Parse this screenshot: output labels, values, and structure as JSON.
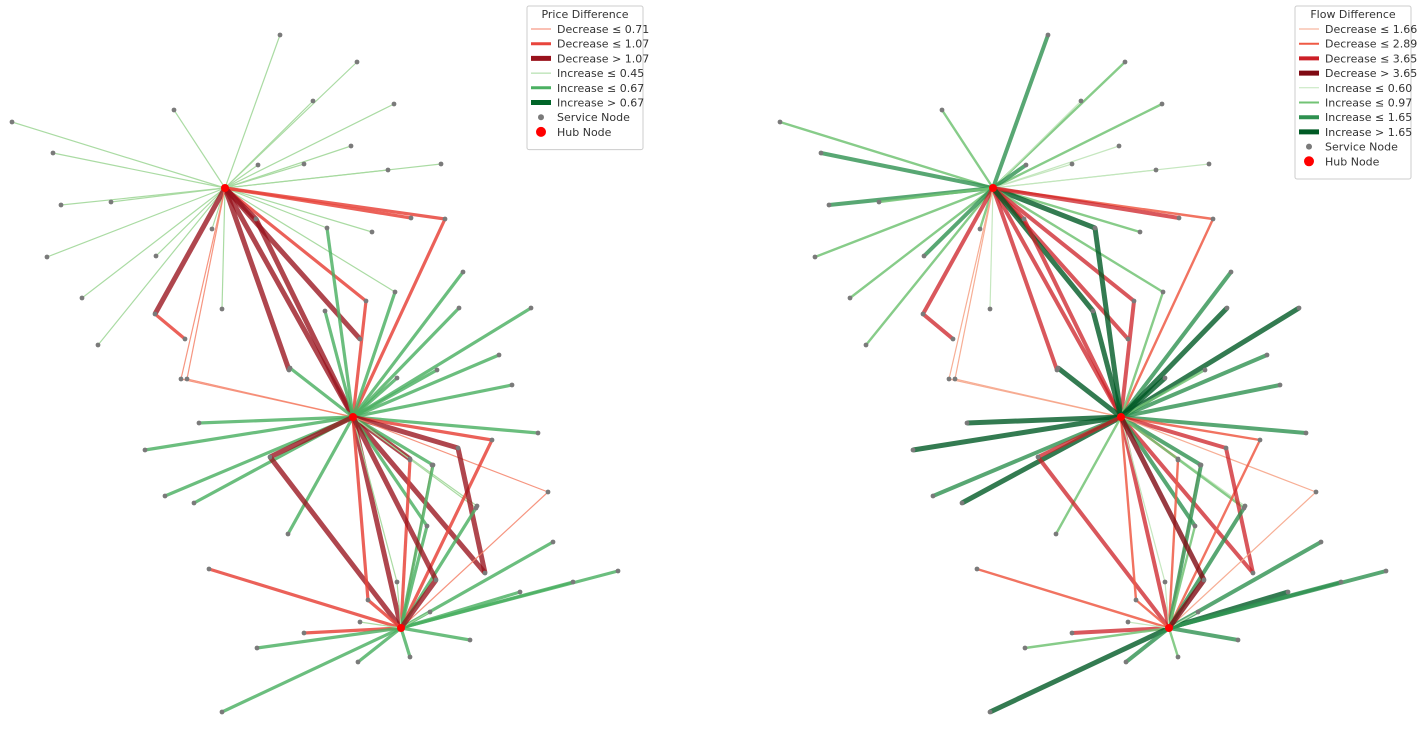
{
  "panels": [
    {
      "id": "price",
      "legend": {
        "title": "Price Difference",
        "items": [
          {
            "label": "Decrease ≤ 0.71",
            "kind": "line",
            "color": "#f4826a",
            "width": 1
          },
          {
            "label": "Decrease ≤ 1.07",
            "kind": "line",
            "color": "#e8453c",
            "width": 3
          },
          {
            "label": "Decrease > 1.07",
            "kind": "line",
            "color": "#99121c",
            "width": 5
          },
          {
            "label": "Increase ≤ 0.45",
            "kind": "line",
            "color": "#a5d99e",
            "width": 1
          },
          {
            "label": "Increase ≤ 0.67",
            "kind": "line",
            "color": "#4bb062",
            "width": 3
          },
          {
            "label": "Increase > 0.67",
            "kind": "line",
            "color": "#006428",
            "width": 5
          },
          {
            "label": "Service Node",
            "kind": "dot",
            "color": "#7a7a7a",
            "r": 3
          },
          {
            "label": "Hub Node",
            "kind": "dot",
            "color": "#ff0000",
            "r": 5
          }
        ]
      },
      "hubs": [
        "A",
        "B",
        "C"
      ],
      "edges": [
        [
          "A",
          "a1",
          "ip1"
        ],
        [
          "A",
          "a2",
          "ip1"
        ],
        [
          "A",
          "a3",
          "ip1"
        ],
        [
          "A",
          "a4",
          "ip1"
        ],
        [
          "A",
          "a5",
          "ip1"
        ],
        [
          "A",
          "a6",
          "ip1"
        ],
        [
          "A",
          "a7",
          "ip1"
        ],
        [
          "A",
          "a8",
          "ip1"
        ],
        [
          "A",
          "a9",
          "ip1"
        ],
        [
          "A",
          "a10",
          "ip1"
        ],
        [
          "A",
          "a11",
          "ip1"
        ],
        [
          "A",
          "a12",
          "ip1"
        ],
        [
          "A",
          "a13",
          "ip1"
        ],
        [
          "A",
          "a14",
          "ip1"
        ],
        [
          "A",
          "a15",
          "ip1"
        ],
        [
          "A",
          "a16",
          "ip1"
        ],
        [
          "A",
          "a17",
          "ip1"
        ],
        [
          "A",
          "a18",
          "ip1"
        ],
        [
          "A",
          "a19",
          "ip1"
        ],
        [
          "A",
          "a20",
          "ip1"
        ],
        [
          "A",
          "m1",
          "ip1"
        ],
        [
          "A",
          "m2",
          "ip1"
        ],
        [
          "A",
          "m6",
          "ip1"
        ],
        [
          "A",
          "m3",
          "dp3"
        ],
        [
          "A",
          "m5",
          "dp2"
        ],
        [
          "A",
          "m4",
          "dp2"
        ],
        [
          "A",
          "m7",
          "dp2"
        ],
        [
          "A",
          "m8",
          "dp3"
        ],
        [
          "A",
          "m9",
          "dp3"
        ],
        [
          "A",
          "m13",
          "dp1"
        ],
        [
          "A",
          "m14",
          "dp1"
        ],
        [
          "A",
          "B",
          "dp3"
        ],
        [
          "A",
          "m10",
          "dp3"
        ],
        [
          "m3",
          "m12",
          "dp2"
        ],
        [
          "m5",
          "B",
          "dp2"
        ],
        [
          "m7",
          "B",
          "dp2"
        ],
        [
          "m14",
          "B",
          "dp1"
        ],
        [
          "m13",
          "B",
          "dp1"
        ],
        [
          "m10",
          "B",
          "dp3"
        ],
        [
          "m2",
          "B",
          "ip2"
        ],
        [
          "m6",
          "B",
          "ip2"
        ],
        [
          "B",
          "b1",
          "ip2"
        ],
        [
          "B",
          "b2",
          "ip2"
        ],
        [
          "B",
          "b3",
          "ip2"
        ],
        [
          "B",
          "b4",
          "ip2"
        ],
        [
          "B",
          "b5",
          "ip2"
        ],
        [
          "B",
          "b6",
          "ip2"
        ],
        [
          "B",
          "b7",
          "ip2"
        ],
        [
          "B",
          "b8",
          "ip2"
        ],
        [
          "B",
          "b9",
          "ip2"
        ],
        [
          "B",
          "b10",
          "ip2"
        ],
        [
          "B",
          "b11",
          "ip2"
        ],
        [
          "B",
          "b12",
          "ip2"
        ],
        [
          "B",
          "b13",
          "ip2"
        ],
        [
          "B",
          "b14",
          "ip2"
        ],
        [
          "B",
          "b15",
          "ip1"
        ],
        [
          "B",
          "m11",
          "ip2"
        ],
        [
          "B",
          "b16",
          "dp2"
        ],
        [
          "B",
          "b17",
          "dp3"
        ],
        [
          "B",
          "b18",
          "dp3"
        ],
        [
          "B",
          "b19",
          "dp3"
        ],
        [
          "B",
          "b20",
          "dp3"
        ],
        [
          "B",
          "b21",
          "ip2"
        ],
        [
          "B",
          "b22",
          "ip1"
        ],
        [
          "B",
          "b23",
          "dp1"
        ],
        [
          "B",
          "C",
          "dp3"
        ],
        [
          "B",
          "b24",
          "ip2"
        ],
        [
          "B",
          "b25",
          "ip1"
        ],
        [
          "b16",
          "C",
          "dp2"
        ],
        [
          "b17",
          "C",
          "dp3"
        ],
        [
          "b18",
          "b20",
          "dp3"
        ],
        [
          "b23",
          "C",
          "dp1"
        ],
        [
          "b26",
          "C",
          "dp2"
        ],
        [
          "b27",
          "C",
          "dp2"
        ],
        [
          "b28",
          "C",
          "dp2"
        ],
        [
          "b29",
          "C",
          "dp1"
        ],
        [
          "C",
          "c1",
          "ip2"
        ],
        [
          "C",
          "c2",
          "ip2"
        ],
        [
          "C",
          "c3",
          "ip2"
        ],
        [
          "C",
          "c4",
          "ip2"
        ],
        [
          "C",
          "c5",
          "ip2"
        ],
        [
          "C",
          "c6",
          "ip2"
        ],
        [
          "C",
          "c7",
          "ip2"
        ],
        [
          "C",
          "c8",
          "ip2"
        ],
        [
          "C",
          "c9",
          "ip2"
        ],
        [
          "C",
          "c10",
          "ip1"
        ],
        [
          "C",
          "c11",
          "ip1"
        ],
        [
          "C",
          "b21",
          "ip2"
        ],
        [
          "C",
          "b22",
          "ip2"
        ],
        [
          "C",
          "b24",
          "ip2"
        ],
        [
          "C",
          "c12",
          "dp2"
        ],
        [
          "c12",
          "B",
          "dp2"
        ],
        [
          "C",
          "c13",
          "dp3"
        ],
        [
          "c13",
          "B",
          "dp3"
        ],
        [
          "C",
          "b25",
          "ip1"
        ]
      ]
    },
    {
      "id": "flow",
      "legend": {
        "title": "Flow Difference",
        "items": [
          {
            "label": "Decrease ≤ 1.66",
            "kind": "line",
            "color": "#f6a58a",
            "width": 1
          },
          {
            "label": "Decrease ≤ 2.89",
            "kind": "line",
            "color": "#ef5a45",
            "width": 2
          },
          {
            "label": "Decrease ≤ 3.65",
            "kind": "line",
            "color": "#cc1f26",
            "width": 4
          },
          {
            "label": "Decrease > 3.65",
            "kind": "line",
            "color": "#7f0a13",
            "width": 5
          },
          {
            "label": "Increase ≤ 0.60",
            "kind": "line",
            "color": "#c2e6bc",
            "width": 1
          },
          {
            "label": "Increase ≤ 0.97",
            "kind": "line",
            "color": "#72c374",
            "width": 2
          },
          {
            "label": "Increase ≤ 1.65",
            "kind": "line",
            "color": "#2e9150",
            "width": 4
          },
          {
            "label": "Increase > 1.65",
            "kind": "line",
            "color": "#005a25",
            "width": 5
          },
          {
            "label": "Service Node",
            "kind": "dot",
            "color": "#7a7a7a",
            "r": 3
          },
          {
            "label": "Hub Node",
            "kind": "dot",
            "color": "#ff0000",
            "r": 5
          }
        ]
      },
      "hubs": [
        "A",
        "B",
        "C"
      ],
      "edges": [
        [
          "A",
          "a1",
          "if3"
        ],
        [
          "A",
          "a2",
          "if2"
        ],
        [
          "A",
          "a3",
          "if1"
        ],
        [
          "A",
          "a4",
          "if2"
        ],
        [
          "A",
          "a5",
          "if1"
        ],
        [
          "A",
          "a6",
          "if1"
        ],
        [
          "A",
          "a7",
          "if1"
        ],
        [
          "A",
          "a8",
          "if3"
        ],
        [
          "A",
          "a9",
          "if1"
        ],
        [
          "A",
          "a10",
          "if2"
        ],
        [
          "A",
          "a11",
          "if2"
        ],
        [
          "A",
          "a12",
          "if3"
        ],
        [
          "A",
          "a13",
          "if3"
        ],
        [
          "A",
          "a14",
          "if2"
        ],
        [
          "A",
          "a15",
          "if2"
        ],
        [
          "A",
          "a16",
          "if2"
        ],
        [
          "A",
          "a17",
          "if2"
        ],
        [
          "A",
          "a18",
          "if3"
        ],
        [
          "A",
          "a19",
          "if2"
        ],
        [
          "A",
          "a20",
          "if1"
        ],
        [
          "A",
          "m1",
          "if2"
        ],
        [
          "A",
          "m2",
          "if4"
        ],
        [
          "A",
          "m6",
          "if2"
        ],
        [
          "A",
          "m3",
          "df3"
        ],
        [
          "A",
          "m5",
          "df2"
        ],
        [
          "A",
          "m4",
          "df3"
        ],
        [
          "A",
          "m7",
          "df3"
        ],
        [
          "A",
          "m8",
          "df3"
        ],
        [
          "A",
          "m9",
          "df3"
        ],
        [
          "A",
          "m13",
          "df1"
        ],
        [
          "A",
          "m14",
          "df1"
        ],
        [
          "A",
          "B",
          "df3"
        ],
        [
          "A",
          "m10",
          "df3"
        ],
        [
          "A",
          "m11",
          "if4"
        ],
        [
          "m3",
          "m12",
          "df3"
        ],
        [
          "m5",
          "B",
          "df2"
        ],
        [
          "m7",
          "B",
          "df3"
        ],
        [
          "m14",
          "B",
          "df1"
        ],
        [
          "m13",
          "B",
          "df1"
        ],
        [
          "m10",
          "B",
          "df3"
        ],
        [
          "m2",
          "B",
          "if4"
        ],
        [
          "m6",
          "B",
          "if2"
        ],
        [
          "B",
          "b1",
          "if3"
        ],
        [
          "B",
          "b2",
          "if4"
        ],
        [
          "B",
          "b3",
          "if4"
        ],
        [
          "B",
          "b4",
          "if3"
        ],
        [
          "B",
          "b5",
          "if3"
        ],
        [
          "B",
          "b6",
          "if2"
        ],
        [
          "B",
          "b7",
          "if4"
        ],
        [
          "B",
          "b8",
          "if4"
        ],
        [
          "B",
          "b9",
          "if3"
        ],
        [
          "B",
          "b10",
          "if4"
        ],
        [
          "B",
          "b11",
          "if4"
        ],
        [
          "B",
          "b12",
          "if3"
        ],
        [
          "B",
          "b13",
          "if4"
        ],
        [
          "B",
          "b14",
          "if2"
        ],
        [
          "B",
          "b15",
          "if1"
        ],
        [
          "B",
          "m11",
          "if4"
        ],
        [
          "B",
          "b16",
          "df2"
        ],
        [
          "B",
          "b17",
          "df3"
        ],
        [
          "B",
          "b18",
          "df3"
        ],
        [
          "B",
          "b19",
          "df2"
        ],
        [
          "B",
          "b20",
          "df3"
        ],
        [
          "B",
          "b21",
          "if3"
        ],
        [
          "B",
          "b22",
          "if2"
        ],
        [
          "B",
          "b23",
          "df1"
        ],
        [
          "B",
          "C",
          "df3"
        ],
        [
          "B",
          "b24",
          "if3"
        ],
        [
          "B",
          "b25",
          "if1"
        ],
        [
          "b16",
          "C",
          "df2"
        ],
        [
          "b17",
          "C",
          "df3"
        ],
        [
          "b18",
          "b20",
          "df3"
        ],
        [
          "b23",
          "C",
          "df1"
        ],
        [
          "b26",
          "C",
          "df2"
        ],
        [
          "b27",
          "C",
          "df3"
        ],
        [
          "b28",
          "C",
          "df2"
        ],
        [
          "b29",
          "C",
          "df1"
        ],
        [
          "C",
          "c1",
          "if3"
        ],
        [
          "C",
          "c2",
          "if4"
        ],
        [
          "C",
          "c3",
          "if3"
        ],
        [
          "C",
          "c4",
          "if3"
        ],
        [
          "C",
          "c5",
          "if3"
        ],
        [
          "C",
          "c6",
          "if2"
        ],
        [
          "C",
          "c7",
          "if4"
        ],
        [
          "C",
          "c8",
          "if3"
        ],
        [
          "C",
          "c9",
          "if2"
        ],
        [
          "C",
          "c10",
          "if1"
        ],
        [
          "C",
          "c11",
          "if1"
        ],
        [
          "C",
          "b21",
          "if3"
        ],
        [
          "C",
          "b22",
          "if3"
        ],
        [
          "C",
          "b24",
          "if2"
        ],
        [
          "C",
          "c12",
          "df2"
        ],
        [
          "c12",
          "B",
          "df2"
        ],
        [
          "C",
          "c13",
          "df4"
        ],
        [
          "c13",
          "B",
          "df4"
        ],
        [
          "C",
          "b25",
          "if1"
        ]
      ]
    }
  ],
  "styles": {
    "dp1": {
      "color": "#f4826a",
      "width": 1.2,
      "opacity": 0.85
    },
    "dp2": {
      "color": "#e8453c",
      "width": 3.2,
      "opacity": 0.85
    },
    "dp3": {
      "color": "#99121c",
      "width": 5,
      "opacity": 0.78
    },
    "ip1": {
      "color": "#a5d99e",
      "width": 1.2,
      "opacity": 0.95
    },
    "ip2": {
      "color": "#4bb062",
      "width": 3.2,
      "opacity": 0.82
    },
    "ip3": {
      "color": "#006428",
      "width": 5,
      "opacity": 0.8
    },
    "df1": {
      "color": "#f6a58a",
      "width": 1.2,
      "opacity": 0.9
    },
    "df2": {
      "color": "#ef5a45",
      "width": 2.4,
      "opacity": 0.85
    },
    "df3": {
      "color": "#cc1f26",
      "width": 4,
      "opacity": 0.75
    },
    "df4": {
      "color": "#7f0a13",
      "width": 5,
      "opacity": 0.8
    },
    "if1": {
      "color": "#c2e6bc",
      "width": 1.2,
      "opacity": 0.95
    },
    "if2": {
      "color": "#72c374",
      "width": 2.4,
      "opacity": 0.85
    },
    "if3": {
      "color": "#2e9150",
      "width": 4,
      "opacity": 0.8
    },
    "if4": {
      "color": "#005a25",
      "width": 5,
      "opacity": 0.8
    }
  }
}
